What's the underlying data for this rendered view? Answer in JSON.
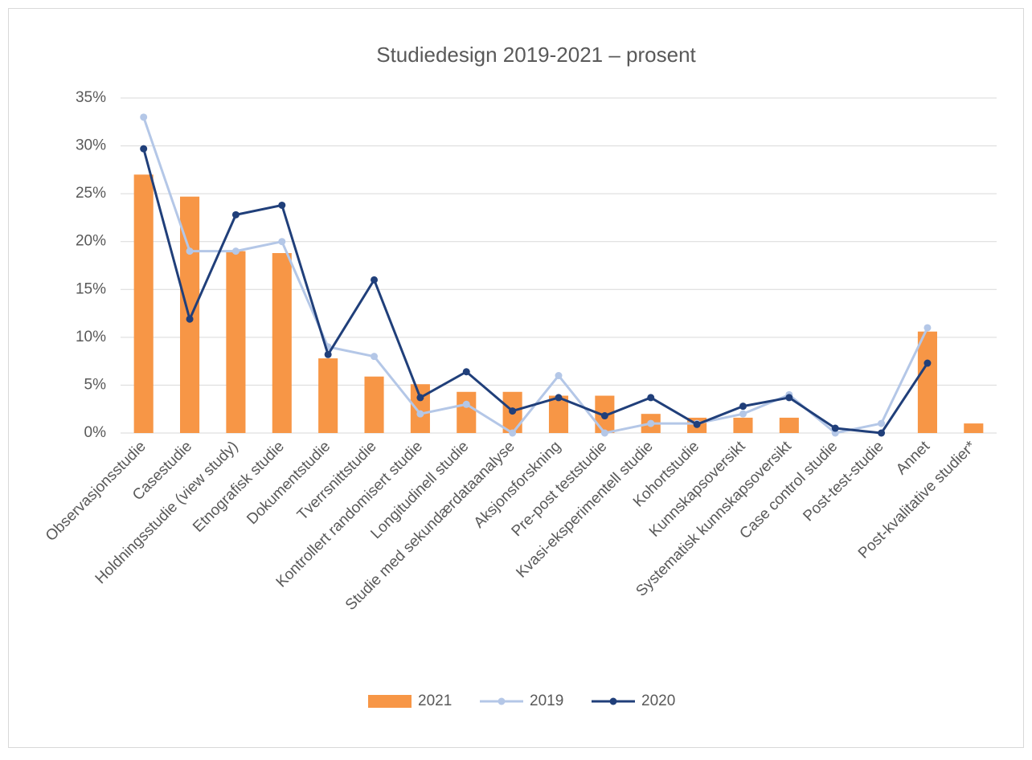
{
  "chart_data": {
    "type": "bar-line",
    "title": "Studiedesign 2019-2021 – prosent",
    "categories": [
      "Observasjonsstudie",
      "Casestudie",
      "Holdningsstudie (view study)",
      "Etnografisk studie",
      "Dokumentstudie",
      "Tverrsnittstudie",
      "Kontrollert randomisert studie",
      "Longitudinell studie",
      "Studie med sekundærdataanalyse",
      "Aksjonsforskning",
      "Pre-post teststudie",
      "Kvasi-eksperimentell studie",
      "Kohortstudie",
      "Kunnskapsoversikt",
      "Systematisk kunnskapsoversikt",
      "Case control studie",
      "Post-test-studie",
      "Annet",
      "Post-kvalitative studier*"
    ],
    "series": [
      {
        "name": "2021",
        "type": "bar",
        "color": "#f79646",
        "values": [
          27,
          24.7,
          19,
          18.8,
          7.8,
          5.9,
          5.1,
          4.3,
          4.3,
          3.9,
          3.9,
          2.0,
          1.6,
          1.6,
          1.6,
          0,
          0,
          10.6,
          1.0
        ]
      },
      {
        "name": "2019",
        "type": "line",
        "color": "#b4c7e7",
        "values": [
          33,
          19,
          19,
          20,
          9,
          8,
          2,
          3,
          0,
          6,
          0,
          1,
          1,
          2,
          4,
          0,
          1,
          11,
          null
        ]
      },
      {
        "name": "2020",
        "type": "line",
        "color": "#203f7a",
        "values": [
          29.7,
          11.9,
          22.8,
          23.8,
          8.2,
          16.0,
          3.7,
          6.4,
          2.3,
          3.7,
          1.8,
          3.7,
          0.9,
          2.8,
          3.7,
          0.5,
          0,
          7.3,
          null
        ]
      }
    ],
    "ylim": [
      0,
      35
    ],
    "yticks": [
      {
        "value": 0,
        "label": "0%"
      },
      {
        "value": 5,
        "label": "5%"
      },
      {
        "value": 10,
        "label": "10%"
      },
      {
        "value": 15,
        "label": "15%"
      },
      {
        "value": 20,
        "label": "20%"
      },
      {
        "value": 25,
        "label": "25%"
      },
      {
        "value": 30,
        "label": "30%"
      },
      {
        "value": 35,
        "label": "35%"
      }
    ],
    "grid": true,
    "legend": "bottom"
  }
}
